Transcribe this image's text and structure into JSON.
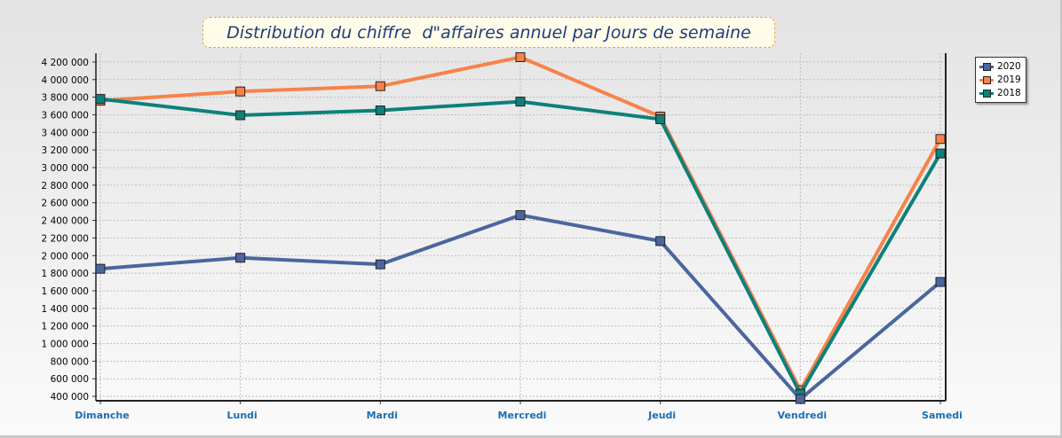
{
  "chart_data": {
    "type": "line",
    "title": "Distribution du chiffre  d\"affaires annuel par Jours de semaine",
    "categories": [
      "Dimanche",
      "Lundi",
      "Mardi",
      "Mercredi",
      "Jeudi",
      "Vendredi",
      "Samedi"
    ],
    "series": [
      {
        "name": "2020",
        "color": "#4a66a0",
        "values": [
          1850000,
          1975000,
          1900000,
          2460000,
          2165000,
          370000,
          1700000
        ]
      },
      {
        "name": "2019",
        "color": "#f8824a",
        "values": [
          3760000,
          3865000,
          3925000,
          4255000,
          3580000,
          470000,
          3325000
        ]
      },
      {
        "name": "2018",
        "color": "#0e807a",
        "values": [
          3780000,
          3595000,
          3650000,
          3750000,
          3550000,
          430000,
          3160000
        ]
      }
    ],
    "y_ticks": [
      "400 000",
      "600 000",
      "800 000",
      "1 000 000",
      "1 200 000",
      "1 400 000",
      "1 600 000",
      "1 800 000",
      "2 000 000",
      "2 200 000",
      "2 400 000",
      "2 600 000",
      "2 800 000",
      "3 000 000",
      "3 200 000",
      "3 400 000",
      "3 600 000",
      "3 800 000",
      "4 000 000",
      "4 200 000"
    ],
    "ylim": [
      350000,
      4300000
    ],
    "grid": true,
    "legend_position": "top-right"
  }
}
